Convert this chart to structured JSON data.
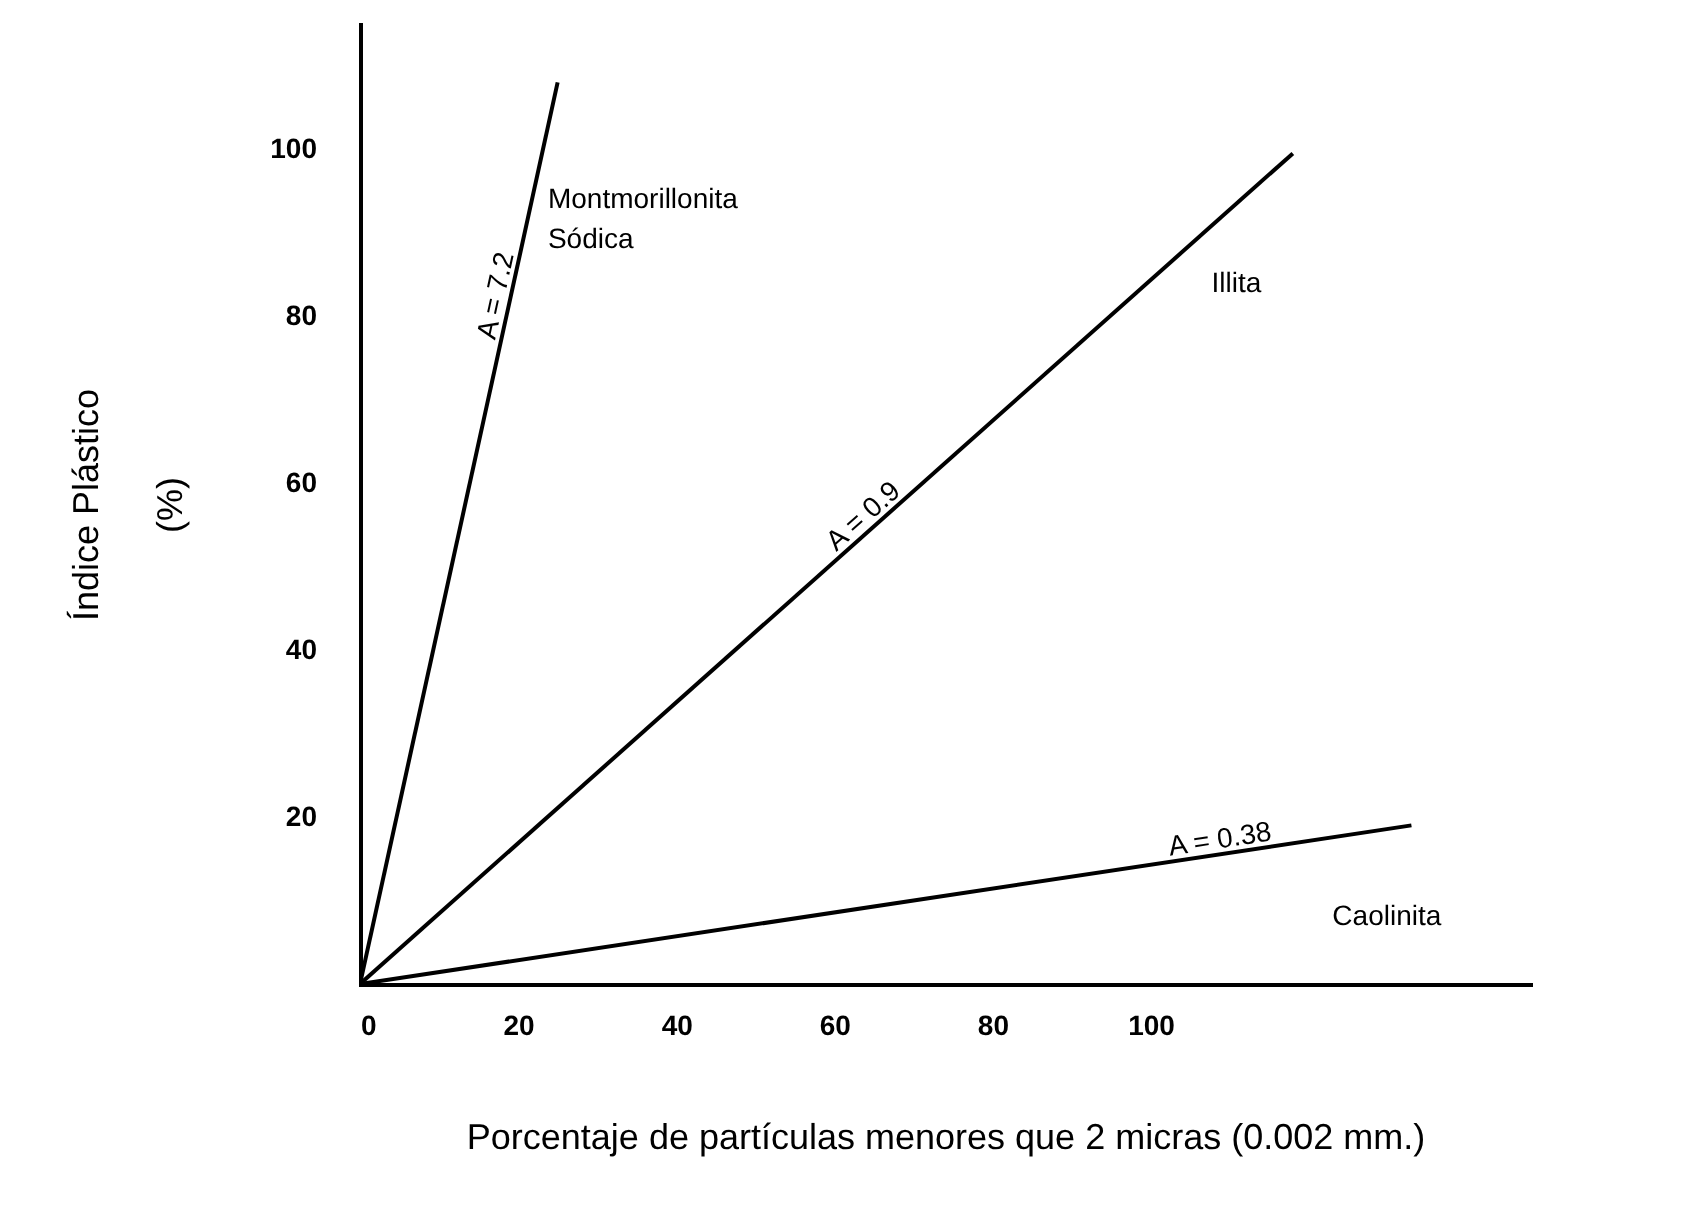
{
  "chart_data": {
    "type": "line",
    "xlabel": "Porcentaje de partículas menores que 2 micras (0.002 mm.)",
    "ylabel": "Índice Plástico\n(%)",
    "xlim": [
      0,
      148
    ],
    "ylim": [
      0,
      115
    ],
    "xticks": [
      0,
      20,
      40,
      60,
      80,
      100
    ],
    "yticks": [
      20,
      40,
      60,
      80,
      100
    ],
    "grid": false,
    "marker": "none",
    "line_style": "solid",
    "series": [
      {
        "name": "Montmorillonita Sódica",
        "color": "#000000",
        "x": [
          0,
          25
        ],
        "values": [
          0,
          108
        ]
      },
      {
        "name": "Illita",
        "color": "#000000",
        "x": [
          0,
          118
        ],
        "values": [
          0,
          99.5
        ]
      },
      {
        "name": "Caolinita",
        "color": "#000000",
        "x": [
          0,
          133
        ],
        "values": [
          0,
          19
        ]
      }
    ],
    "annotations": [
      "A = 7.2",
      "A = 0.9",
      "A = 0.38"
    ]
  }
}
